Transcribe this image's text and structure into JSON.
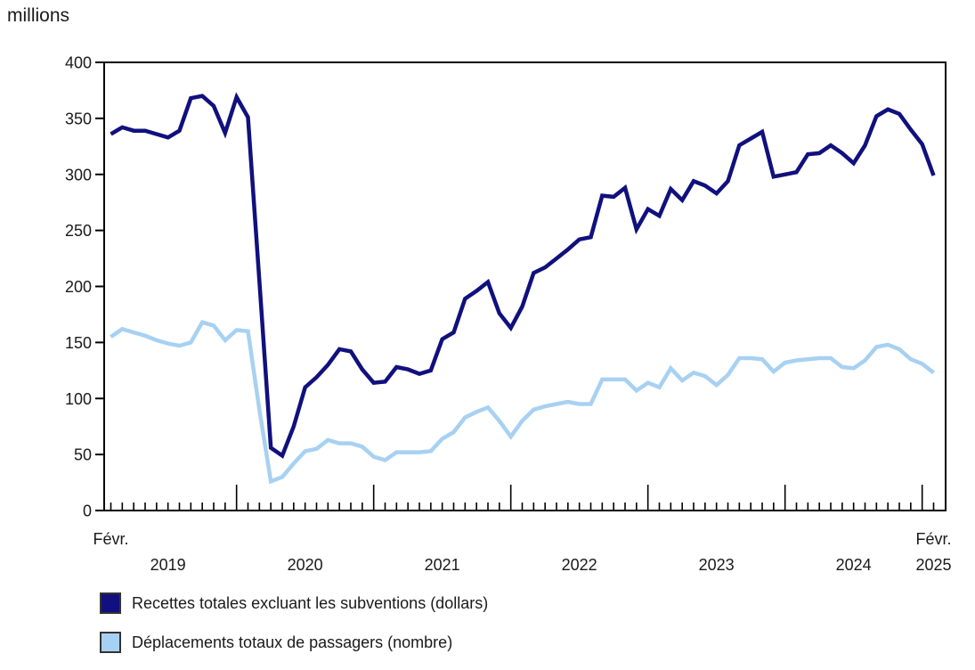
{
  "unit_label": "millions",
  "legend": {
    "items": [
      {
        "label": "Recettes totales excluant les subventions (dollars)",
        "color": "#10107e"
      },
      {
        "label": "Déplacements totaux de passagers (nombre)",
        "color": "#a7d1f2"
      }
    ]
  },
  "chart_data": {
    "type": "line",
    "title": "millions",
    "ylabel": "millions",
    "xlabel": "",
    "grid": false,
    "legend_position": "bottom-left",
    "ylim": [
      0,
      400
    ],
    "y_ticks": [
      0,
      50,
      100,
      150,
      200,
      250,
      300,
      350,
      400
    ],
    "x_axis": {
      "start_point_label": "Févr.",
      "end_point_label": "Févr.",
      "year_labels": [
        {
          "label": "2019",
          "anchor_month_index": 5
        },
        {
          "label": "2020",
          "anchor_month_index": 17
        },
        {
          "label": "2021",
          "anchor_month_index": 29
        },
        {
          "label": "2022",
          "anchor_month_index": 41
        },
        {
          "label": "2023",
          "anchor_month_index": 53
        },
        {
          "label": "2024",
          "anchor_month_index": 65
        },
        {
          "label": "2025",
          "anchor_month_index": 72
        }
      ]
    },
    "x_months": [
      "2019-02",
      "2019-03",
      "2019-04",
      "2019-05",
      "2019-06",
      "2019-07",
      "2019-08",
      "2019-09",
      "2019-10",
      "2019-11",
      "2019-12",
      "2020-01",
      "2020-02",
      "2020-03",
      "2020-04",
      "2020-05",
      "2020-06",
      "2020-07",
      "2020-08",
      "2020-09",
      "2020-10",
      "2020-11",
      "2020-12",
      "2021-01",
      "2021-02",
      "2021-03",
      "2021-04",
      "2021-05",
      "2021-06",
      "2021-07",
      "2021-08",
      "2021-09",
      "2021-10",
      "2021-11",
      "2021-12",
      "2022-01",
      "2022-02",
      "2022-03",
      "2022-04",
      "2022-05",
      "2022-06",
      "2022-07",
      "2022-08",
      "2022-09",
      "2022-10",
      "2022-11",
      "2022-12",
      "2023-01",
      "2023-02",
      "2023-03",
      "2023-04",
      "2023-05",
      "2023-06",
      "2023-07",
      "2023-08",
      "2023-09",
      "2023-10",
      "2023-11",
      "2023-12",
      "2024-01",
      "2024-02",
      "2024-03",
      "2024-04",
      "2024-05",
      "2024-06",
      "2024-07",
      "2024-08",
      "2024-09",
      "2024-10",
      "2024-11",
      "2024-12",
      "2025-01",
      "2025-02"
    ],
    "series": [
      {
        "name": "Recettes totales excluant les subventions (dollars)",
        "color": "#10107e",
        "values": [
          336,
          342,
          339,
          339,
          336,
          333,
          339,
          368,
          370,
          361,
          337,
          369,
          351,
          205,
          56,
          49,
          75,
          110,
          119,
          130,
          144,
          142,
          126,
          114,
          115,
          128,
          126,
          122,
          125,
          153,
          159,
          189,
          196,
          204,
          176,
          163,
          182,
          212,
          217,
          225,
          233,
          242,
          244,
          281,
          280,
          288,
          251,
          269,
          263,
          287,
          277,
          294,
          290,
          283,
          294,
          326,
          332,
          338,
          298,
          300,
          302,
          318,
          319,
          326,
          319,
          310,
          326,
          352,
          358,
          354,
          340,
          327,
          299
        ]
      },
      {
        "name": "Déplacements totaux de passagers (nombre)",
        "color": "#a7d1f2",
        "values": [
          155,
          162,
          159,
          156,
          152,
          149,
          147,
          150,
          168,
          165,
          152,
          161,
          160,
          90,
          26,
          30,
          42,
          53,
          55,
          63,
          60,
          60,
          57,
          48,
          45,
          52,
          52,
          52,
          53,
          64,
          70,
          83,
          88,
          92,
          80,
          66,
          80,
          90,
          93,
          95,
          97,
          95,
          95,
          117,
          117,
          117,
          107,
          114,
          110,
          127,
          116,
          123,
          120,
          112,
          121,
          136,
          136,
          135,
          124,
          132,
          134,
          135,
          136,
          136,
          128,
          127,
          134,
          146,
          148,
          144,
          135,
          131,
          123
        ]
      }
    ]
  }
}
